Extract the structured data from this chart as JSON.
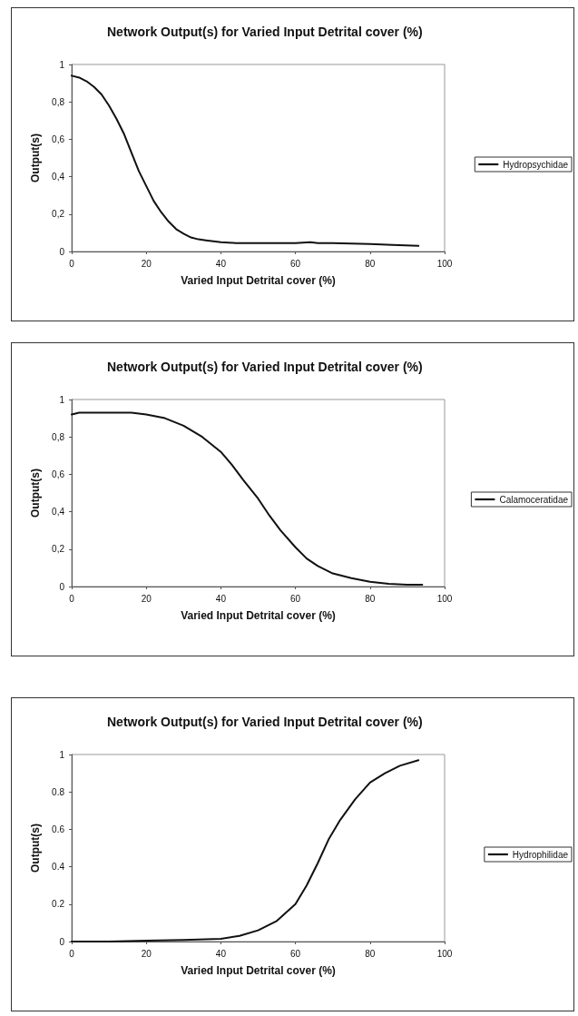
{
  "chart_data": [
    {
      "type": "line",
      "title": "Network Output(s) for Varied Input Detrital cover (%)",
      "xlabel": "Varied Input Detrital cover (%)",
      "ylabel": "Output(s)",
      "xlim": [
        0,
        100
      ],
      "xticks": [
        0,
        20,
        40,
        60,
        80,
        100
      ],
      "ylim": [
        0,
        1
      ],
      "yticks": [
        0,
        {
          "value": 0.2,
          "label": "0,2"
        },
        {
          "value": 0.4,
          "label": "0,4"
        },
        {
          "value": 0.6,
          "label": "0,6"
        },
        {
          "value": 0.8,
          "label": "0,8"
        },
        1
      ],
      "grid": false,
      "legend": "right",
      "marker": "none",
      "line_style": "solid",
      "series": [
        {
          "name": "Hydropsychidae",
          "color": "#111111",
          "x": [
            0,
            2,
            4,
            6,
            8,
            10,
            12,
            14,
            16,
            18,
            20,
            22,
            24,
            26,
            28,
            30,
            32,
            34,
            36,
            40,
            44,
            50,
            60,
            64,
            66,
            70,
            80,
            86,
            93
          ],
          "values": [
            0.94,
            0.93,
            0.91,
            0.88,
            0.84,
            0.78,
            0.71,
            0.63,
            0.53,
            0.43,
            0.35,
            0.27,
            0.21,
            0.16,
            0.12,
            0.095,
            0.075,
            0.065,
            0.06,
            0.05,
            0.045,
            0.045,
            0.045,
            0.05,
            0.045,
            0.045,
            0.04,
            0.035,
            0.03
          ]
        }
      ]
    },
    {
      "type": "line",
      "title": "Network Output(s) for Varied Input Detrital cover (%)",
      "xlabel": "Varied Input Detrital cover (%)",
      "ylabel": "Output(s)",
      "xlim": [
        0,
        100
      ],
      "xticks": [
        0,
        20,
        40,
        60,
        80,
        100
      ],
      "ylim": [
        0,
        1
      ],
      "yticks": [
        0,
        {
          "value": 0.2,
          "label": "0,2"
        },
        {
          "value": 0.4,
          "label": "0,4"
        },
        {
          "value": 0.6,
          "label": "0,6"
        },
        {
          "value": 0.8,
          "label": "0,8"
        },
        1
      ],
      "grid": false,
      "legend": "right",
      "marker": "none",
      "line_style": "solid",
      "series": [
        {
          "name": "Calamoceratidae",
          "color": "#111111",
          "x": [
            0,
            2,
            10,
            16,
            20,
            25,
            30,
            35,
            40,
            43,
            46,
            50,
            53,
            56,
            60,
            63,
            66,
            70,
            75,
            80,
            85,
            90,
            94
          ],
          "values": [
            0.92,
            0.93,
            0.93,
            0.93,
            0.92,
            0.9,
            0.86,
            0.8,
            0.72,
            0.65,
            0.57,
            0.47,
            0.38,
            0.3,
            0.21,
            0.15,
            0.11,
            0.07,
            0.045,
            0.025,
            0.015,
            0.01,
            0.01
          ]
        }
      ]
    },
    {
      "type": "line",
      "title": "Network Output(s) for Varied Input Detrital cover (%)",
      "xlabel": "Varied Input Detrital cover (%)",
      "ylabel": "Output(s)",
      "xlim": [
        0,
        100
      ],
      "xticks": [
        0,
        20,
        40,
        60,
        80,
        100
      ],
      "ylim": [
        0,
        1
      ],
      "yticks": [
        0,
        0.2,
        0.4,
        0.6,
        0.8,
        1
      ],
      "grid": false,
      "legend": "right",
      "marker": "none",
      "line_style": "solid",
      "series": [
        {
          "name": "Hydrophilidae",
          "color": "#111111",
          "x": [
            0,
            10,
            20,
            30,
            40,
            45,
            50,
            55,
            60,
            63,
            66,
            69,
            72,
            76,
            80,
            84,
            88,
            93
          ],
          "values": [
            0,
            0,
            0.005,
            0.008,
            0.015,
            0.03,
            0.06,
            0.11,
            0.2,
            0.3,
            0.42,
            0.55,
            0.65,
            0.76,
            0.85,
            0.9,
            0.94,
            0.97
          ]
        }
      ]
    }
  ]
}
